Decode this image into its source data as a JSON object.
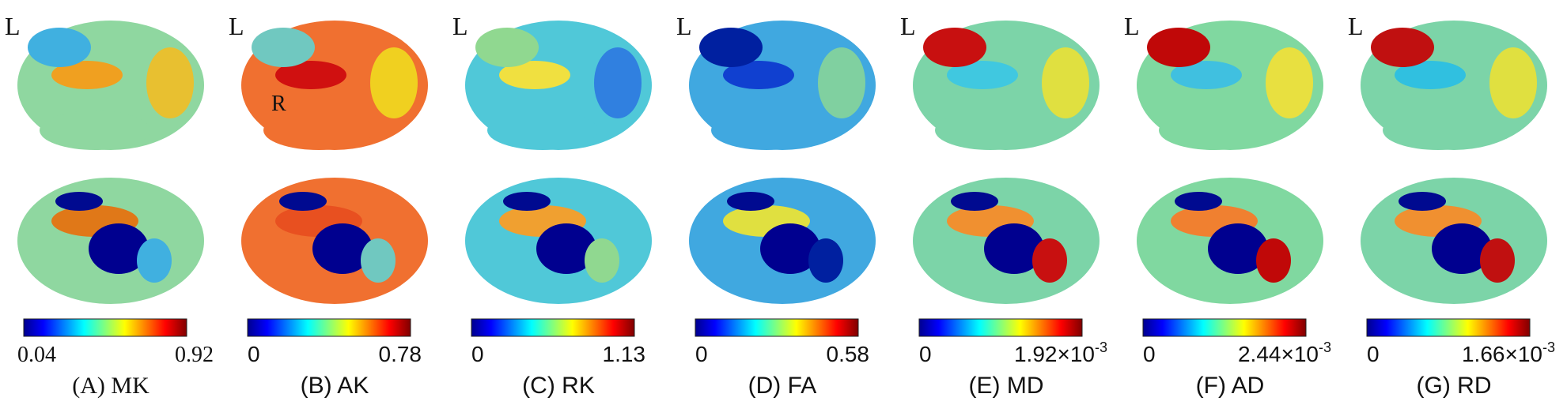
{
  "panels": [
    {
      "hemisphere": "L",
      "caption": "(A) MK",
      "min": "0.04",
      "max": "0.92"
    },
    {
      "hemisphere": "L",
      "region_label": "R",
      "caption": "(B) AK",
      "min": "0",
      "max": "0.78"
    },
    {
      "hemisphere": "L",
      "caption": "(C) RK",
      "min": "0",
      "max": "1.13"
    },
    {
      "hemisphere": "L",
      "caption": "(D) FA",
      "min": "0",
      "max": "0.58"
    },
    {
      "hemisphere": "L",
      "caption": "(E) MD",
      "min": "0",
      "max": "1.92×10",
      "max_exponent": "-3"
    },
    {
      "hemisphere": "L",
      "caption": "(F) AD",
      "min": "0",
      "max": "2.44×10",
      "max_exponent": "-3"
    },
    {
      "hemisphere": "L",
      "caption": "(G) RD",
      "min": "0",
      "max": "1.66×10",
      "max_exponent": "-3"
    }
  ]
}
